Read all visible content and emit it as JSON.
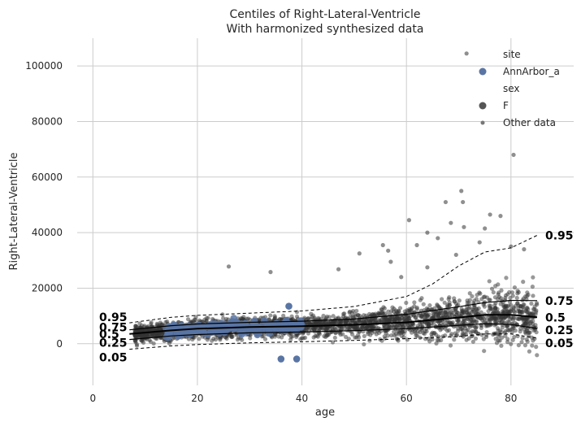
{
  "chart_data": {
    "type": "scatter",
    "title": "Centiles of Right-Lateral-Ventricle",
    "subtitle": "With harmonized synthesized data",
    "xlabel": "age",
    "ylabel": "Right-Lateral-Ventricle",
    "xlim": [
      -3,
      92
    ],
    "ylim": [
      -15000,
      110000
    ],
    "xticks": [
      0,
      20,
      40,
      60,
      80
    ],
    "yticks": [
      0,
      20000,
      40000,
      60000,
      80000,
      100000
    ],
    "grid": true,
    "legend": {
      "placement": "top-right",
      "entries": [
        {
          "kind": "header",
          "text": "site"
        },
        {
          "kind": "marker",
          "text": "AnnArbor_a",
          "color": "#5975a4",
          "size": 4.5
        },
        {
          "kind": "header",
          "text": "sex"
        },
        {
          "kind": "marker",
          "text": "F",
          "color": "#555555",
          "size": 4.5
        },
        {
          "kind": "marker",
          "text": "Other data",
          "color": "#777777",
          "size": 2.5
        }
      ]
    },
    "colors": {
      "site_point": "#5975a4",
      "other_data": "#333333",
      "centile_line": "#000000"
    },
    "centiles": [
      {
        "label": "0.05",
        "style": "dashed",
        "width": 1,
        "x": [
          7,
          15,
          20,
          30,
          40,
          50,
          60,
          70,
          75,
          80,
          85
        ],
        "y": [
          -2000,
          -800,
          -300,
          300,
          700,
          1200,
          1800,
          2600,
          3500,
          3500,
          2000
        ]
      },
      {
        "label": "0.25",
        "style": "solid",
        "width": 1.2,
        "x": [
          7,
          15,
          20,
          30,
          40,
          50,
          60,
          70,
          75,
          80,
          85
        ],
        "y": [
          1500,
          2800,
          3300,
          3900,
          4200,
          4700,
          5400,
          6600,
          7200,
          6900,
          5500
        ]
      },
      {
        "label": "0.5",
        "style": "solid",
        "width": 2,
        "x": [
          7,
          15,
          20,
          30,
          40,
          50,
          60,
          70,
          75,
          80,
          85
        ],
        "y": [
          3500,
          4800,
          5400,
          6000,
          6300,
          6800,
          7700,
          9400,
          10400,
          10400,
          9500
        ]
      },
      {
        "label": "0.75",
        "style": "solid",
        "width": 1.2,
        "x": [
          7,
          15,
          20,
          30,
          40,
          50,
          60,
          70,
          75,
          80,
          85
        ],
        "y": [
          5000,
          6500,
          7100,
          7700,
          8100,
          8900,
          10600,
          13300,
          14800,
          15600,
          15500
        ]
      },
      {
        "label": "0.95",
        "style": "dashed",
        "width": 1,
        "x": [
          7,
          15,
          20,
          30,
          40,
          50,
          60,
          65,
          70,
          75,
          80,
          85
        ],
        "y": [
          7500,
          9500,
          10200,
          11000,
          11800,
          13400,
          17000,
          21500,
          28000,
          33000,
          34500,
          39000
        ]
      }
    ],
    "outliers": [
      {
        "x": 71.5,
        "y": 104500
      },
      {
        "x": 80.5,
        "y": 68000
      },
      {
        "x": 70.5,
        "y": 55000
      },
      {
        "x": 67.5,
        "y": 51000
      },
      {
        "x": 70.8,
        "y": 51000
      },
      {
        "x": 60.5,
        "y": 44500
      },
      {
        "x": 68.5,
        "y": 43500
      },
      {
        "x": 76,
        "y": 46500
      },
      {
        "x": 78,
        "y": 46000
      },
      {
        "x": 71,
        "y": 42000
      },
      {
        "x": 64,
        "y": 40000
      },
      {
        "x": 75,
        "y": 41500
      },
      {
        "x": 66,
        "y": 38000
      },
      {
        "x": 62,
        "y": 35500
      },
      {
        "x": 55.5,
        "y": 35500
      },
      {
        "x": 56.5,
        "y": 33500
      },
      {
        "x": 74,
        "y": 36500
      },
      {
        "x": 80,
        "y": 35000
      },
      {
        "x": 51,
        "y": 32500
      },
      {
        "x": 57,
        "y": 29500
      },
      {
        "x": 69.5,
        "y": 32000
      },
      {
        "x": 26,
        "y": 27800
      },
      {
        "x": 34,
        "y": 25800
      },
      {
        "x": 47,
        "y": 26800
      },
      {
        "x": 59,
        "y": 24000
      },
      {
        "x": 82.5,
        "y": 34000
      },
      {
        "x": 64,
        "y": 27500
      }
    ],
    "site_points_approx": {
      "x_range": [
        14,
        40
      ],
      "n": 220,
      "low_outliers": [
        {
          "x": 36,
          "y": -5500
        },
        {
          "x": 39,
          "y": -5500
        },
        {
          "x": 37.5,
          "y": 13500
        }
      ]
    },
    "other_points_approx": {
      "x_range": [
        8,
        85
      ],
      "n": 2600
    }
  }
}
